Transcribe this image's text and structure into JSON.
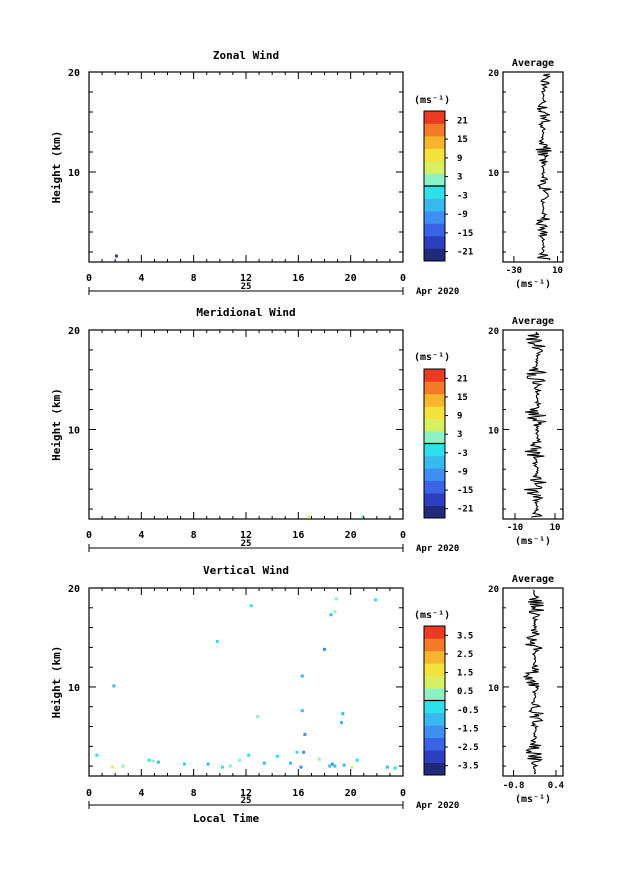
{
  "panels": [
    {
      "id": "zonal",
      "title": "Zonal Wind",
      "ylabel": "Height (km)",
      "date_label": "25",
      "month_label": "Apr 2020",
      "colorbar": {
        "unit": "(ms⁻¹)",
        "ticks": [
          "21",
          "15",
          "9",
          "3",
          "-3",
          "-9",
          "-15",
          "-21"
        ]
      },
      "avg": {
        "title": "Average",
        "xticks": [
          "-30",
          "10"
        ],
        "xlabel": "(ms⁻¹)"
      }
    },
    {
      "id": "meridional",
      "title": "Meridional Wind",
      "ylabel": "Height (km)",
      "date_label": "25",
      "month_label": "Apr 2020",
      "colorbar": {
        "unit": "(ms⁻¹)",
        "ticks": [
          "21",
          "15",
          "9",
          "3",
          "-3",
          "-9",
          "-15",
          "-21"
        ]
      },
      "avg": {
        "title": "Average",
        "xticks": [
          "-10",
          "10"
        ],
        "xlabel": "(ms⁻¹)"
      }
    },
    {
      "id": "vertical",
      "title": "Vertical Wind",
      "ylabel": "Height (km)",
      "date_label": "25",
      "month_label": "Apr 2020",
      "xlabel": "Local Time",
      "colorbar": {
        "unit": "(ms⁻¹)",
        "ticks": [
          "3.5",
          "2.5",
          "1.5",
          "0.5",
          "-0.5",
          "-1.5",
          "-2.5",
          "-3.5"
        ]
      },
      "avg": {
        "title": "Average",
        "xticks": [
          "-0.8",
          "0.4"
        ],
        "xlabel": "(ms⁻¹)"
      }
    }
  ],
  "colormap": [
    "#1f2a7a",
    "#2d3fc0",
    "#3a63e8",
    "#3f8ef2",
    "#39b8f0",
    "#2ee0ea",
    "#8cf2c4",
    "#d8f060",
    "#f2e23a",
    "#f7b42c",
    "#f47a28",
    "#ec3a22"
  ],
  "chart_data": [
    {
      "type": "heatmap",
      "title": "Zonal Wind",
      "ylabel": "Height (km)",
      "x_ticks": [
        "0",
        "4",
        "8",
        "12",
        "16",
        "20",
        "0"
      ],
      "xlim": [
        0,
        24
      ],
      "y_ticks": [
        "10",
        "20"
      ],
      "ylim": [
        1,
        20
      ],
      "colorbar_range": [
        -24,
        24
      ],
      "points": [
        {
          "t": 2.1,
          "h": 1.6,
          "v": -18
        }
      ]
    },
    {
      "type": "line",
      "title": "Average",
      "xlabel": "(ms⁻¹)",
      "x_ticks": [
        "-30",
        "10"
      ],
      "xlim": [
        -40,
        15
      ],
      "y_ticks": [
        "10",
        "20"
      ],
      "ylim": [
        1,
        20
      ],
      "profile_amplitude": 7,
      "profile_center": -3
    },
    {
      "type": "heatmap",
      "title": "Meridional Wind",
      "ylabel": "Height (km)",
      "x_ticks": [
        "0",
        "4",
        "8",
        "12",
        "16",
        "20",
        "0"
      ],
      "xlim": [
        0,
        24
      ],
      "y_ticks": [
        "10",
        "20"
      ],
      "ylim": [
        1,
        20
      ],
      "colorbar_range": [
        -24,
        24
      ],
      "points": [
        {
          "t": 16.8,
          "h": 1.2,
          "v": 4
        },
        {
          "t": 20.9,
          "h": 1.2,
          "v": 2
        }
      ]
    },
    {
      "type": "line",
      "title": "Average",
      "xlabel": "(ms⁻¹)",
      "x_ticks": [
        "-10",
        "10"
      ],
      "xlim": [
        -16,
        14
      ],
      "y_ticks": [
        "10",
        "20"
      ],
      "ylim": [
        1,
        20
      ],
      "profile_amplitude": 6,
      "profile_center": 1
    },
    {
      "type": "heatmap",
      "title": "Vertical Wind",
      "ylabel": "Height (km)",
      "xlabel": "Local Time",
      "x_ticks": [
        "0",
        "4",
        "8",
        "12",
        "16",
        "20",
        "0"
      ],
      "xlim": [
        0,
        24
      ],
      "y_ticks": [
        "10",
        "20"
      ],
      "ylim": [
        1,
        20
      ],
      "colorbar_range": [
        -4,
        4
      ],
      "points": [
        {
          "t": 12.4,
          "h": 18.2,
          "v": -0.5
        },
        {
          "t": 18.9,
          "h": 18.9,
          "v": 0.2
        },
        {
          "t": 21.9,
          "h": 18.8,
          "v": -0.4
        },
        {
          "t": 18.5,
          "h": 17.3,
          "v": -1.2
        },
        {
          "t": 18.8,
          "h": 17.6,
          "v": 0.4
        },
        {
          "t": 9.8,
          "h": 14.6,
          "v": -0.6
        },
        {
          "t": 18.0,
          "h": 13.8,
          "v": -1.4
        },
        {
          "t": 1.9,
          "h": 10.1,
          "v": -0.8
        },
        {
          "t": 16.3,
          "h": 11.1,
          "v": -0.9
        },
        {
          "t": 16.3,
          "h": 7.6,
          "v": -0.8
        },
        {
          "t": 12.9,
          "h": 7.0,
          "v": 0.2
        },
        {
          "t": 19.4,
          "h": 7.3,
          "v": -0.7
        },
        {
          "t": 19.3,
          "h": 6.4,
          "v": -0.9
        },
        {
          "t": 16.5,
          "h": 5.2,
          "v": -1.7
        },
        {
          "t": 0.6,
          "h": 3.1,
          "v": -0.5
        },
        {
          "t": 4.6,
          "h": 2.6,
          "v": -0.6
        },
        {
          "t": 4.9,
          "h": 2.5,
          "v": 0.3
        },
        {
          "t": 5.3,
          "h": 2.4,
          "v": -0.9
        },
        {
          "t": 7.3,
          "h": 2.2,
          "v": -0.4
        },
        {
          "t": 9.1,
          "h": 2.2,
          "v": -0.9
        },
        {
          "t": 10.2,
          "h": 1.9,
          "v": -0.6
        },
        {
          "t": 10.8,
          "h": 2.0,
          "v": 0.6
        },
        {
          "t": 11.5,
          "h": 2.6,
          "v": 0.2
        },
        {
          "t": 12.2,
          "h": 3.1,
          "v": -0.3
        },
        {
          "t": 13.4,
          "h": 2.3,
          "v": -0.7
        },
        {
          "t": 14.4,
          "h": 3.0,
          "v": -0.4
        },
        {
          "t": 15.4,
          "h": 2.3,
          "v": -1.2
        },
        {
          "t": 15.9,
          "h": 3.4,
          "v": -0.6
        },
        {
          "t": 16.2,
          "h": 1.9,
          "v": -1.6
        },
        {
          "t": 16.4,
          "h": 3.4,
          "v": -1.5
        },
        {
          "t": 17.6,
          "h": 2.7,
          "v": 0.4
        },
        {
          "t": 18.4,
          "h": 2.0,
          "v": -1.3
        },
        {
          "t": 18.6,
          "h": 2.2,
          "v": -1.5
        },
        {
          "t": 18.8,
          "h": 2.0,
          "v": -0.9
        },
        {
          "t": 19.5,
          "h": 2.1,
          "v": -1.0
        },
        {
          "t": 20.1,
          "h": 1.9,
          "v": 0.8
        },
        {
          "t": 20.5,
          "h": 2.6,
          "v": -0.4
        },
        {
          "t": 22.8,
          "h": 1.9,
          "v": -0.7
        },
        {
          "t": 23.4,
          "h": 1.8,
          "v": -0.5
        },
        {
          "t": 1.8,
          "h": 1.9,
          "v": 0.9
        },
        {
          "t": 2.6,
          "h": 2.0,
          "v": 0.3
        }
      ]
    },
    {
      "type": "line",
      "title": "Average",
      "xlabel": "(ms⁻¹)",
      "x_ticks": [
        "-0.8",
        "0.4"
      ],
      "xlim": [
        -1.1,
        0.6
      ],
      "y_ticks": [
        "10",
        "20"
      ],
      "ylim": [
        1,
        20
      ],
      "profile_amplitude": 0.28,
      "profile_center": -0.2
    }
  ]
}
